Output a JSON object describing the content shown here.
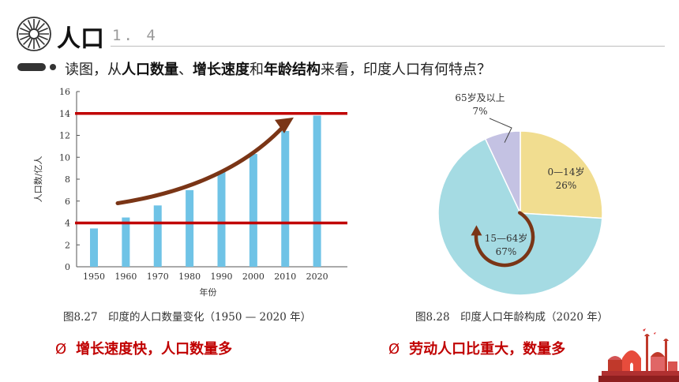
{
  "header": {
    "title": "人口",
    "section_number": "1. 4"
  },
  "question": {
    "prefix": "读图，从",
    "bold1": "人口数量",
    "sep1": "、",
    "bold2": "增长速度",
    "sep2": "和",
    "bold3": "年龄结构",
    "suffix": "来看，印度人口有何特点？"
  },
  "chart_data": [
    {
      "type": "bar",
      "categories": [
        "1950",
        "1960",
        "1970",
        "1980",
        "1990",
        "2000",
        "2010",
        "2020"
      ],
      "values": [
        3.5,
        4.5,
        5.6,
        7.0,
        8.7,
        10.3,
        12.4,
        13.8
      ],
      "ylabel": "人口数/亿人",
      "xlabel": "年份",
      "ylim": [
        0,
        16
      ],
      "yticks": [
        "0",
        "2",
        "4",
        "6",
        "8",
        "10",
        "12",
        "14",
        "16"
      ],
      "reference_lines": [
        4,
        14
      ],
      "bar_color": "#6fc3e6",
      "line_color": "#c00000",
      "arrow_color": "#7a3516",
      "caption": "图8.27　印度的人口数量变化（1950 — 2020 年）"
    },
    {
      "type": "pie",
      "slices": [
        {
          "label": "0—14岁",
          "pct_text": "26%",
          "value": 26,
          "color": "#f1dd90"
        },
        {
          "label": "15—64岁",
          "pct_text": "67%",
          "value": 67,
          "color": "#a5dbe3"
        },
        {
          "label": "65岁及以上",
          "pct_text": "7%",
          "value": 7,
          "color": "#c4c2e3"
        }
      ],
      "caption": "图8.28　印度人口年龄构成（2020 年）"
    }
  ],
  "answers": {
    "bullet": "Ø",
    "left": "增长速度快，人口数量多",
    "right": "劳动人口比重大，数量多"
  }
}
